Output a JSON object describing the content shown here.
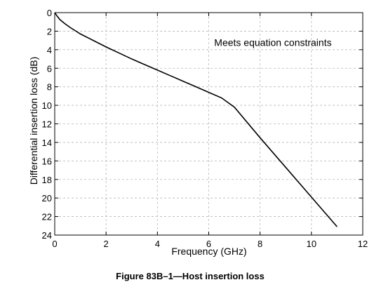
{
  "chart_data": {
    "type": "line",
    "title": "",
    "xlabel": "Frequency (GHz)",
    "ylabel": "Differential insertion loss (dB)",
    "xlim": [
      0,
      12
    ],
    "ylim": [
      0,
      24
    ],
    "y_inverted": true,
    "grid": true,
    "x_ticks": [
      0,
      2,
      4,
      6,
      8,
      10,
      12
    ],
    "y_ticks": [
      0,
      2,
      4,
      6,
      8,
      10,
      12,
      14,
      16,
      18,
      20,
      22,
      24
    ],
    "series": [
      {
        "color": "#000000",
        "x": [
          0.0,
          0.1,
          0.2,
          0.4,
          0.6,
          0.8,
          1.0,
          1.5,
          2.0,
          2.5,
          3.0,
          3.5,
          4.0,
          4.5,
          5.0,
          5.5,
          6.0,
          6.5,
          7.0,
          8.0,
          9.0,
          10.0,
          11.0
        ],
        "y": [
          0.0,
          0.4,
          0.75,
          1.2,
          1.6,
          1.95,
          2.3,
          3.0,
          3.7,
          4.35,
          5.0,
          5.6,
          6.2,
          6.8,
          7.4,
          8.0,
          8.6,
          9.2,
          10.2,
          13.5,
          16.7,
          19.9,
          23.1
        ]
      }
    ],
    "annotations": [
      {
        "text": "Meets equation constraints",
        "x": 8.5,
        "y": 3.6
      }
    ]
  },
  "caption": "Figure 83B–1—Host insertion loss"
}
